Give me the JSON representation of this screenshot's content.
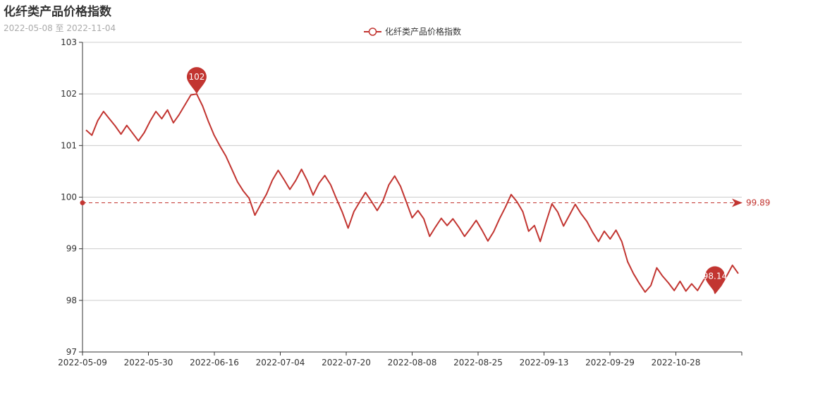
{
  "chart_data": {
    "type": "line",
    "title": "化纤类产品价格指数",
    "subtitle": "2022-05-08 至 2022-11-04",
    "xlabel": "",
    "ylabel": "",
    "ylim": [
      97,
      103
    ],
    "yticks": [
      97,
      98,
      99,
      100,
      101,
      102,
      103
    ],
    "grid": "horizontal",
    "legend": "top-center",
    "x_tick_labels": [
      "2022-05-09",
      "2022-05-30",
      "2022-06-16",
      "2022-07-04",
      "2022-07-20",
      "2022-08-08",
      "2022-08-25",
      "2022-09-13",
      "2022-09-29",
      "2022-10-28"
    ],
    "series": [
      {
        "name": "化纤类产品价格指数",
        "color": "#c23531",
        "values": [
          101.3,
          101.2,
          101.48,
          101.66,
          101.52,
          101.38,
          101.22,
          101.39,
          101.24,
          101.09,
          101.25,
          101.47,
          101.66,
          101.52,
          101.69,
          101.44,
          101.6,
          101.79,
          101.98,
          102.0,
          101.77,
          101.47,
          101.2,
          100.99,
          100.8,
          100.55,
          100.3,
          100.12,
          99.98,
          99.65,
          99.86,
          100.06,
          100.33,
          100.52,
          100.34,
          100.15,
          100.32,
          100.54,
          100.32,
          100.04,
          100.27,
          100.42,
          100.24,
          99.97,
          99.71,
          99.4,
          99.72,
          99.91,
          100.09,
          99.92,
          99.74,
          99.93,
          100.24,
          100.41,
          100.21,
          99.91,
          99.6,
          99.74,
          99.58,
          99.24,
          99.42,
          99.59,
          99.45,
          99.58,
          99.42,
          99.24,
          99.39,
          99.55,
          99.36,
          99.15,
          99.33,
          99.58,
          99.8,
          100.05,
          99.91,
          99.72,
          99.34,
          99.45,
          99.14,
          99.52,
          99.87,
          99.71,
          99.44,
          99.65,
          99.86,
          99.68,
          99.53,
          99.32,
          99.14,
          99.34,
          99.19,
          99.36,
          99.14,
          98.75,
          98.52,
          98.33,
          98.16,
          98.29,
          98.63,
          98.47,
          98.34,
          98.19,
          98.37,
          98.18,
          98.32,
          98.19,
          98.38,
          98.56,
          98.14,
          98.28,
          98.47,
          98.68,
          98.52
        ],
        "markPoint": {
          "max": {
            "value": "102"
          },
          "min": {
            "value": "98.14"
          }
        },
        "markLine": {
          "average": {
            "value": "99.89"
          }
        }
      }
    ]
  }
}
